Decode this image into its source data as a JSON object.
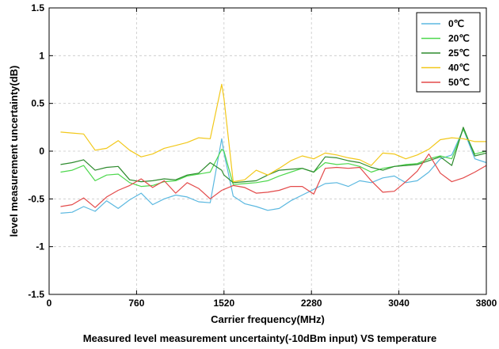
{
  "chart_data": {
    "type": "line",
    "title": "Measured level measurement uncertainty(-10dBm input) VS temperature",
    "xlabel": "Carrier frequency(MHz)",
    "ylabel": "level measurement uncertainty(dB)",
    "xlim": [
      0,
      3800
    ],
    "ylim": [
      -1.5,
      1.5
    ],
    "xticks": [
      0,
      760,
      1520,
      2280,
      3040,
      3800
    ],
    "xtick_labels": [
      "0",
      "760",
      "1520",
      "2280",
      "3040",
      "3800"
    ],
    "yticks": [
      -1.5,
      -1,
      -0.5,
      0,
      0.5,
      1,
      1.5
    ],
    "ytick_labels": [
      "-1.5",
      "-1",
      "-0.5",
      "0",
      "0.5",
      "1",
      "1.5"
    ],
    "grid": true,
    "grid_style": "dashed",
    "legend_position": "top-right",
    "x": [
      100,
      200,
      300,
      400,
      500,
      600,
      700,
      800,
      900,
      1000,
      1100,
      1200,
      1300,
      1400,
      1500,
      1520,
      1600,
      1700,
      1800,
      1900,
      2000,
      2100,
      2200,
      2300,
      2400,
      2500,
      2600,
      2700,
      2800,
      2900,
      3000,
      3100,
      3200,
      3300,
      3400,
      3500,
      3600,
      3700,
      3800
    ],
    "series": [
      {
        "name": "0℃",
        "color": "#5bb8e0",
        "values": [
          -0.65,
          -0.64,
          -0.58,
          -0.63,
          -0.52,
          -0.6,
          -0.51,
          -0.44,
          -0.56,
          -0.5,
          -0.46,
          -0.48,
          -0.53,
          -0.54,
          0.13,
          -0.02,
          -0.47,
          -0.55,
          -0.58,
          -0.62,
          -0.6,
          -0.52,
          -0.46,
          -0.4,
          -0.34,
          -0.33,
          -0.37,
          -0.31,
          -0.33,
          -0.28,
          -0.26,
          -0.33,
          -0.31,
          -0.22,
          -0.08,
          -0.04,
          0.23,
          -0.08,
          -0.12
        ]
      },
      {
        "name": "20℃",
        "color": "#4ed84e",
        "values": [
          -0.22,
          -0.2,
          -0.15,
          -0.31,
          -0.25,
          -0.24,
          -0.33,
          -0.37,
          -0.36,
          -0.32,
          -0.31,
          -0.26,
          -0.24,
          -0.22,
          0.02,
          0.0,
          -0.35,
          -0.34,
          -0.33,
          -0.31,
          -0.26,
          -0.22,
          -0.18,
          -0.22,
          -0.12,
          -0.14,
          -0.13,
          -0.16,
          -0.22,
          -0.18,
          -0.16,
          -0.14,
          -0.13,
          -0.08,
          -0.05,
          -0.08,
          0.23,
          -0.03,
          0.0
        ]
      },
      {
        "name": "25℃",
        "color": "#2e8b2e",
        "values": [
          -0.14,
          -0.12,
          -0.09,
          -0.2,
          -0.17,
          -0.16,
          -0.3,
          -0.32,
          -0.31,
          -0.29,
          -0.3,
          -0.25,
          -0.23,
          -0.12,
          -0.2,
          -0.25,
          -0.33,
          -0.32,
          -0.31,
          -0.25,
          -0.2,
          -0.19,
          -0.18,
          -0.22,
          -0.06,
          -0.07,
          -0.1,
          -0.12,
          -0.17,
          -0.2,
          -0.16,
          -0.15,
          -0.14,
          -0.1,
          -0.06,
          -0.15,
          0.25,
          -0.05,
          -0.02
        ]
      },
      {
        "name": "40℃",
        "color": "#f2c81a",
        "values": [
          0.2,
          0.19,
          0.18,
          0.01,
          0.03,
          0.11,
          0.01,
          -0.06,
          -0.03,
          0.03,
          0.06,
          0.09,
          0.14,
          0.13,
          0.7,
          0.55,
          -0.32,
          -0.3,
          -0.2,
          -0.25,
          -0.18,
          -0.1,
          -0.05,
          -0.08,
          -0.02,
          -0.04,
          -0.07,
          -0.09,
          -0.15,
          -0.02,
          -0.03,
          -0.08,
          -0.04,
          0.02,
          0.12,
          0.14,
          0.13,
          0.1,
          0.1
        ]
      },
      {
        "name": "50℃",
        "color": "#e34a4a",
        "values": [
          -0.58,
          -0.56,
          -0.49,
          -0.59,
          -0.48,
          -0.41,
          -0.36,
          -0.29,
          -0.38,
          -0.31,
          -0.44,
          -0.33,
          -0.39,
          -0.5,
          -0.41,
          -0.4,
          -0.36,
          -0.38,
          -0.44,
          -0.43,
          -0.41,
          -0.37,
          -0.37,
          -0.45,
          -0.18,
          -0.17,
          -0.18,
          -0.17,
          -0.31,
          -0.43,
          -0.42,
          -0.32,
          -0.21,
          -0.03,
          -0.23,
          -0.32,
          -0.28,
          -0.22,
          -0.15
        ]
      }
    ]
  }
}
